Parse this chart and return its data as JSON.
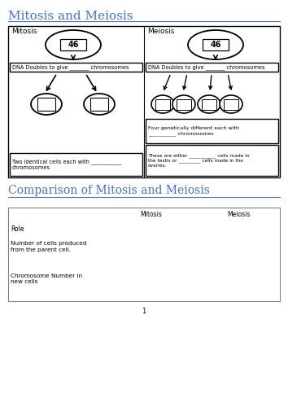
{
  "title1": "Mitosis and Meiosis",
  "title2": "Comparison of Mitosis and Meiosis",
  "title_color": "#4472C4",
  "bg_color": "#ffffff",
  "mitosis_label": "Mitosis",
  "meiosis_label": "Meiosis",
  "cell_number": "46",
  "dna_text_left": "DNA Doubles to give _______ chromosomes",
  "dna_text_right": "DNA Doubles to give _______ chromosomes",
  "mitosis_bottom_text": "Two identical cells each with ___________\nchromosomes",
  "meiosis_bottom_text1": "Four genetically different each with\n___________ chromosomes",
  "meiosis_bottom_text2": "These are either ___________ cells made in\nthe testis or _________ cells made in the\novaries.",
  "table_rows": [
    "Role",
    "Number of cells produced\nfrom the parent cell.",
    "Chromosome Number in\nnew cells"
  ],
  "table_cols": [
    "",
    "Mitosis",
    "Meiosis"
  ],
  "page_number": "1",
  "line_color": "#4472C4",
  "table_line_color": "#808080"
}
